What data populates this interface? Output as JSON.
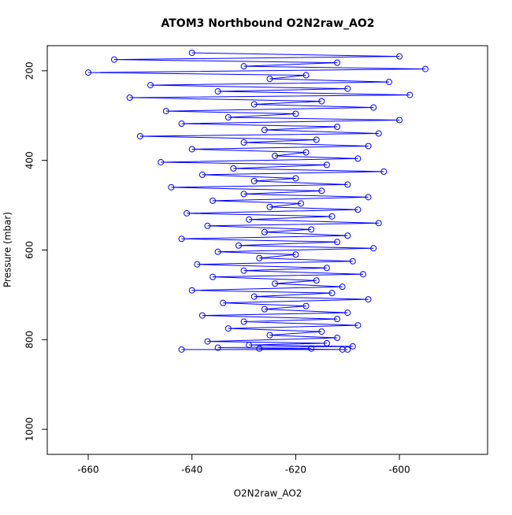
{
  "chart_data": {
    "type": "line",
    "title": "ATOM3 Northbound O2N2raw_AO2",
    "xlabel": "O2N2raw_AO2",
    "ylabel": "Pressure (mbar)",
    "xlim": [
      -667.9,
      -583
    ],
    "ylim": [
      1056,
      144
    ],
    "xticks": [
      -660,
      -640,
      -620,
      -600
    ],
    "yticks": [
      200,
      400,
      600,
      800,
      1000
    ],
    "x": [
      -640,
      -600,
      -655,
      -612,
      -630,
      -595,
      -660,
      -618,
      -625,
      -602,
      -648,
      -610,
      -635,
      -598,
      -652,
      -615,
      -628,
      -605,
      -645,
      -620,
      -633,
      -600,
      -642,
      -612,
      -626,
      -604,
      -650,
      -616,
      -630,
      -606,
      -640,
      -618,
      -624,
      -608,
      -646,
      -614,
      -632,
      -603,
      -638,
      -620,
      -628,
      -610,
      -644,
      -615,
      -630,
      -606,
      -636,
      -619,
      -625,
      -608,
      -641,
      -613,
      -629,
      -604,
      -637,
      -617,
      -626,
      -610,
      -642,
      -612,
      -631,
      -605,
      -635,
      -620,
      -627,
      -609,
      -639,
      -614,
      -630,
      -607,
      -636,
      -616,
      -624,
      -611,
      -640,
      -613,
      -628,
      -606,
      -634,
      -618,
      -626,
      -610,
      -638,
      -612,
      -630,
      -608,
      -633,
      -615,
      -625,
      -612,
      -637,
      -614,
      -629,
      -609,
      -635,
      -617,
      -627,
      -611,
      -642,
      -610
    ],
    "series": [
      {
        "name": "O2N2raw_AO2",
        "color": "#0000ff",
        "values": [
          160,
          168,
          175,
          182,
          190,
          196,
          204,
          210,
          218,
          225,
          232,
          240,
          246,
          254,
          260,
          268,
          275,
          282,
          290,
          296,
          304,
          310,
          318,
          325,
          332,
          340,
          346,
          354,
          360,
          368,
          375,
          382,
          390,
          396,
          404,
          410,
          418,
          425,
          432,
          440,
          446,
          454,
          460,
          468,
          475,
          482,
          490,
          496,
          504,
          510,
          518,
          525,
          532,
          540,
          546,
          554,
          560,
          568,
          575,
          582,
          590,
          596,
          604,
          610,
          618,
          625,
          632,
          640,
          646,
          654,
          660,
          668,
          675,
          682,
          690,
          696,
          704,
          710,
          718,
          725,
          732,
          740,
          746,
          754,
          760,
          768,
          775,
          782,
          790,
          796,
          804,
          808,
          812,
          815,
          818,
          820,
          820,
          822,
          822,
          822
        ]
      }
    ]
  }
}
